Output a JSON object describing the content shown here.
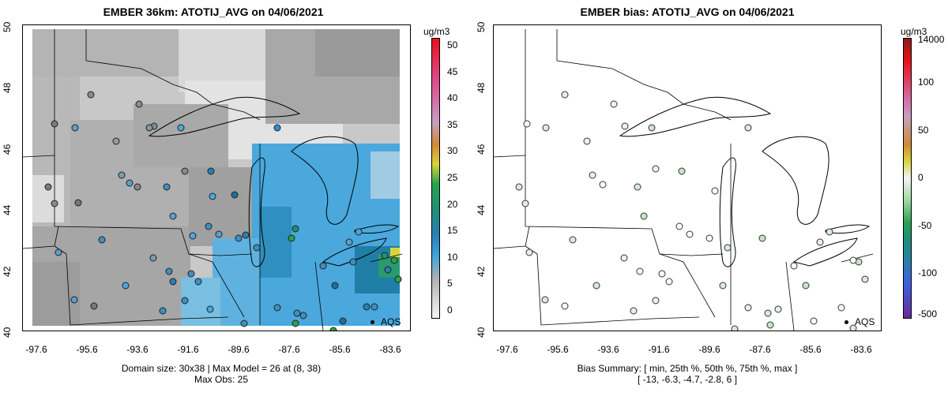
{
  "left": {
    "title": "EMBER 36km: ATOTIJ_AVG on 04/06/2021",
    "caption_line1": "Domain size: 30x38 | Max Model = 26 at (8, 38)",
    "caption_line2": "Max Obs: 25",
    "unit": "ug/m3",
    "colorbar_ticks": [
      "50",
      "45",
      "40",
      "35",
      "30",
      "25",
      "20",
      "15",
      "10",
      "5",
      "0"
    ],
    "colorbar_range": [
      0,
      51
    ],
    "legend_label": "AQS"
  },
  "right": {
    "title": "EMBER bias: ATOTIJ_AVG on 04/06/2021",
    "caption_line1": "Bias Summary: [ min, 25th %, 50th %, 75th %, max ]",
    "caption_line2": "[ -13,   -6.3,   -4.7,   -2.8,   6 ]",
    "unit": "ug/m3",
    "colorbar_ticks": [
      "14000",
      "100",
      "50",
      "0",
      "-50",
      "-100",
      "-500"
    ],
    "legend_label": "AQS"
  },
  "axes": {
    "lat_ticks": [
      "50",
      "48",
      "46",
      "44",
      "42",
      "40"
    ],
    "lon_ticks": [
      "-97.6",
      "-95.6",
      "-93.6",
      "-91.6",
      "-89.6",
      "-87.6",
      "-85.6",
      "-83.6"
    ],
    "lon_range": [
      -98.5,
      -83.2
    ],
    "lat_range": [
      40.0,
      50.0
    ]
  },
  "colors": {
    "low": "#ededed",
    "mid_gray": "#9e9e9e",
    "blue": "#3fa6de",
    "teal": "#1f8f7a",
    "green": "#2aa050",
    "yellow": "#d6d63a"
  }
}
